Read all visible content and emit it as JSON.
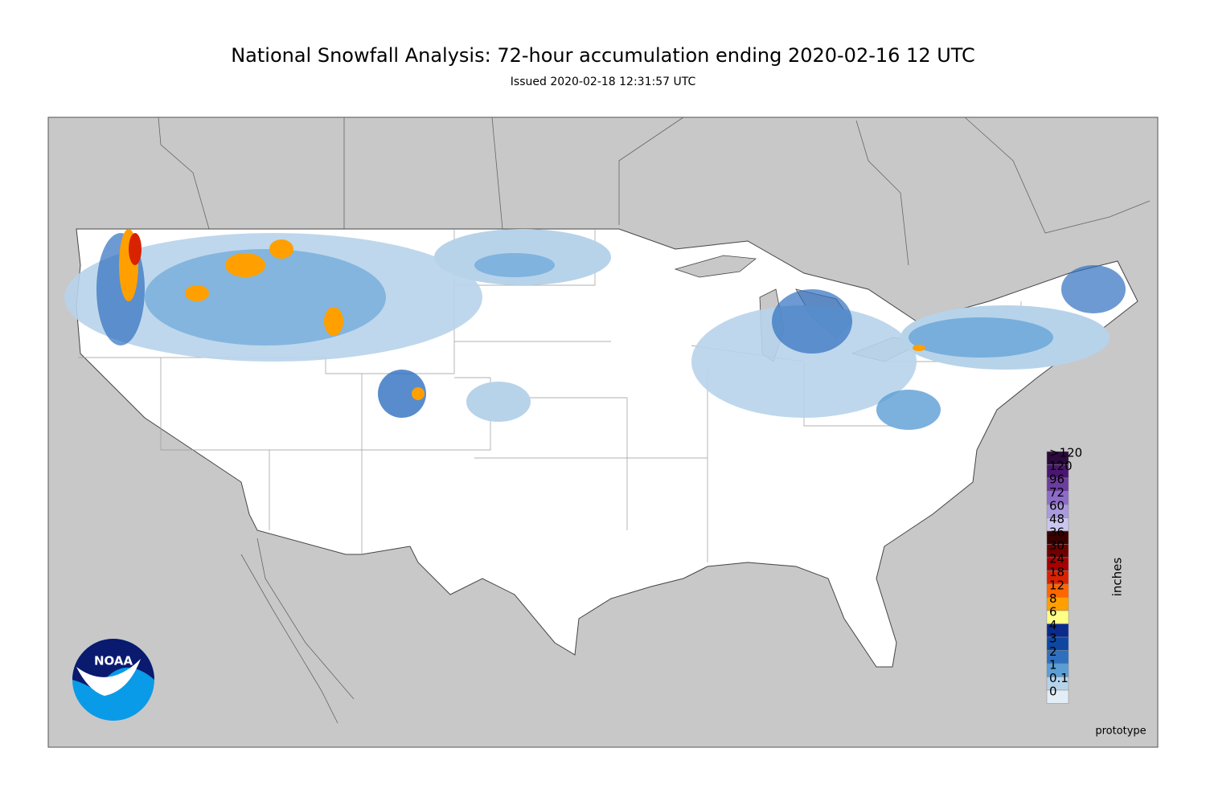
{
  "header": {
    "title": "National Snowfall Analysis: 72-hour accumulation ending 2020-02-16 12 UTC",
    "subtitle": "Issued 2020-02-18 12:31:57 UTC"
  },
  "legend": {
    "unit": "inches",
    "levels": [
      {
        "label": ">120",
        "color": "#2b0a3d"
      },
      {
        "label": 120,
        "color": "#4a1770"
      },
      {
        "label": 96,
        "color": "#6b3d9e"
      },
      {
        "label": 72,
        "color": "#8c6cc8"
      },
      {
        "label": 60,
        "color": "#a99bdc"
      },
      {
        "label": 48,
        "color": "#cbc6f0"
      },
      {
        "label": 36,
        "color": "#3a0000"
      },
      {
        "label": 30,
        "color": "#6e0000"
      },
      {
        "label": 24,
        "color": "#a60000"
      },
      {
        "label": 18,
        "color": "#d82200"
      },
      {
        "label": 12,
        "color": "#ff6600"
      },
      {
        "label": 8,
        "color": "#ffa000"
      },
      {
        "label": 6,
        "color": "#ffff88"
      },
      {
        "label": 4,
        "color": "#0a2a8c"
      },
      {
        "label": 3,
        "color": "#0d47a1"
      },
      {
        "label": 2,
        "color": "#2f6fbf"
      },
      {
        "label": 1,
        "color": "#5b9ed6"
      },
      {
        "label": 0.1,
        "color": "#b7d3ea"
      },
      {
        "label": 0,
        "color": "#e3edf6"
      }
    ]
  },
  "logo": {
    "text": "NOAA"
  },
  "footer": {
    "note": "prototype"
  }
}
